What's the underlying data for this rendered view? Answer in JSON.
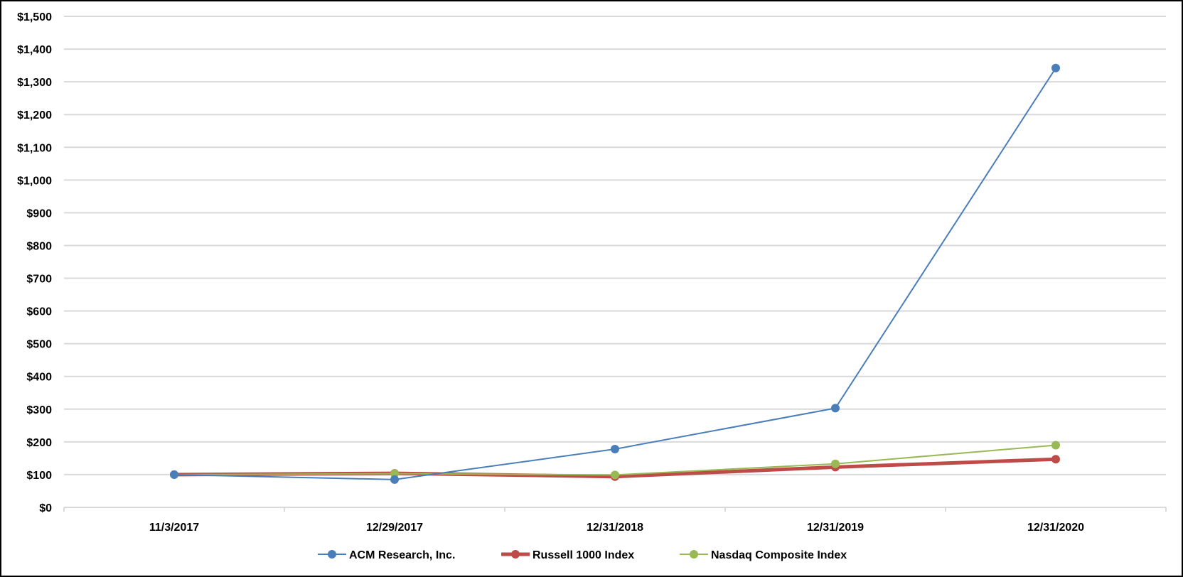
{
  "chart_data": {
    "type": "line",
    "categories": [
      "11/3/2017",
      "12/29/2017",
      "12/31/2018",
      "12/31/2019",
      "12/31/2020"
    ],
    "series": [
      {
        "name": "ACM Research, Inc.",
        "color": "#4a7ebb",
        "values": [
          100,
          85,
          178,
          303,
          1342
        ]
      },
      {
        "name": "Russell 1000 Index",
        "color": "#be4b48",
        "values": [
          100,
          104,
          94,
          123,
          147
        ]
      },
      {
        "name": "Nasdaq Composite Index",
        "color": "#98b954",
        "values": [
          100,
          103,
          99,
          133,
          190
        ]
      }
    ],
    "ylim": [
      0,
      1500
    ],
    "yticks": [
      "$0",
      "$100",
      "$200",
      "$300",
      "$400",
      "$500",
      "$600",
      "$700",
      "$800",
      "$900",
      "$1,000",
      "$1,100",
      "$1,200",
      "$1,300",
      "$1,400",
      "$1,500"
    ],
    "grid": true,
    "legend": "bottom"
  }
}
